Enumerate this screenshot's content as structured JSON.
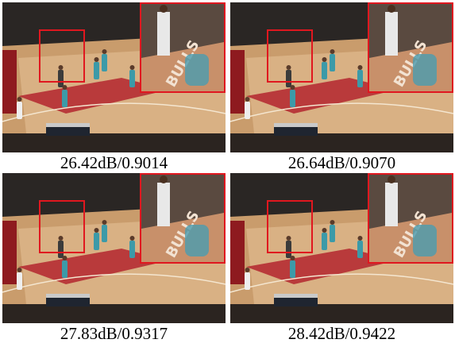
{
  "panels": [
    {
      "caption": "26.42dB/0.9014"
    },
    {
      "caption": "26.64dB/0.9070"
    },
    {
      "caption": "27.83dB/0.9317"
    },
    {
      "caption": "28.42dB/0.9422"
    }
  ]
}
